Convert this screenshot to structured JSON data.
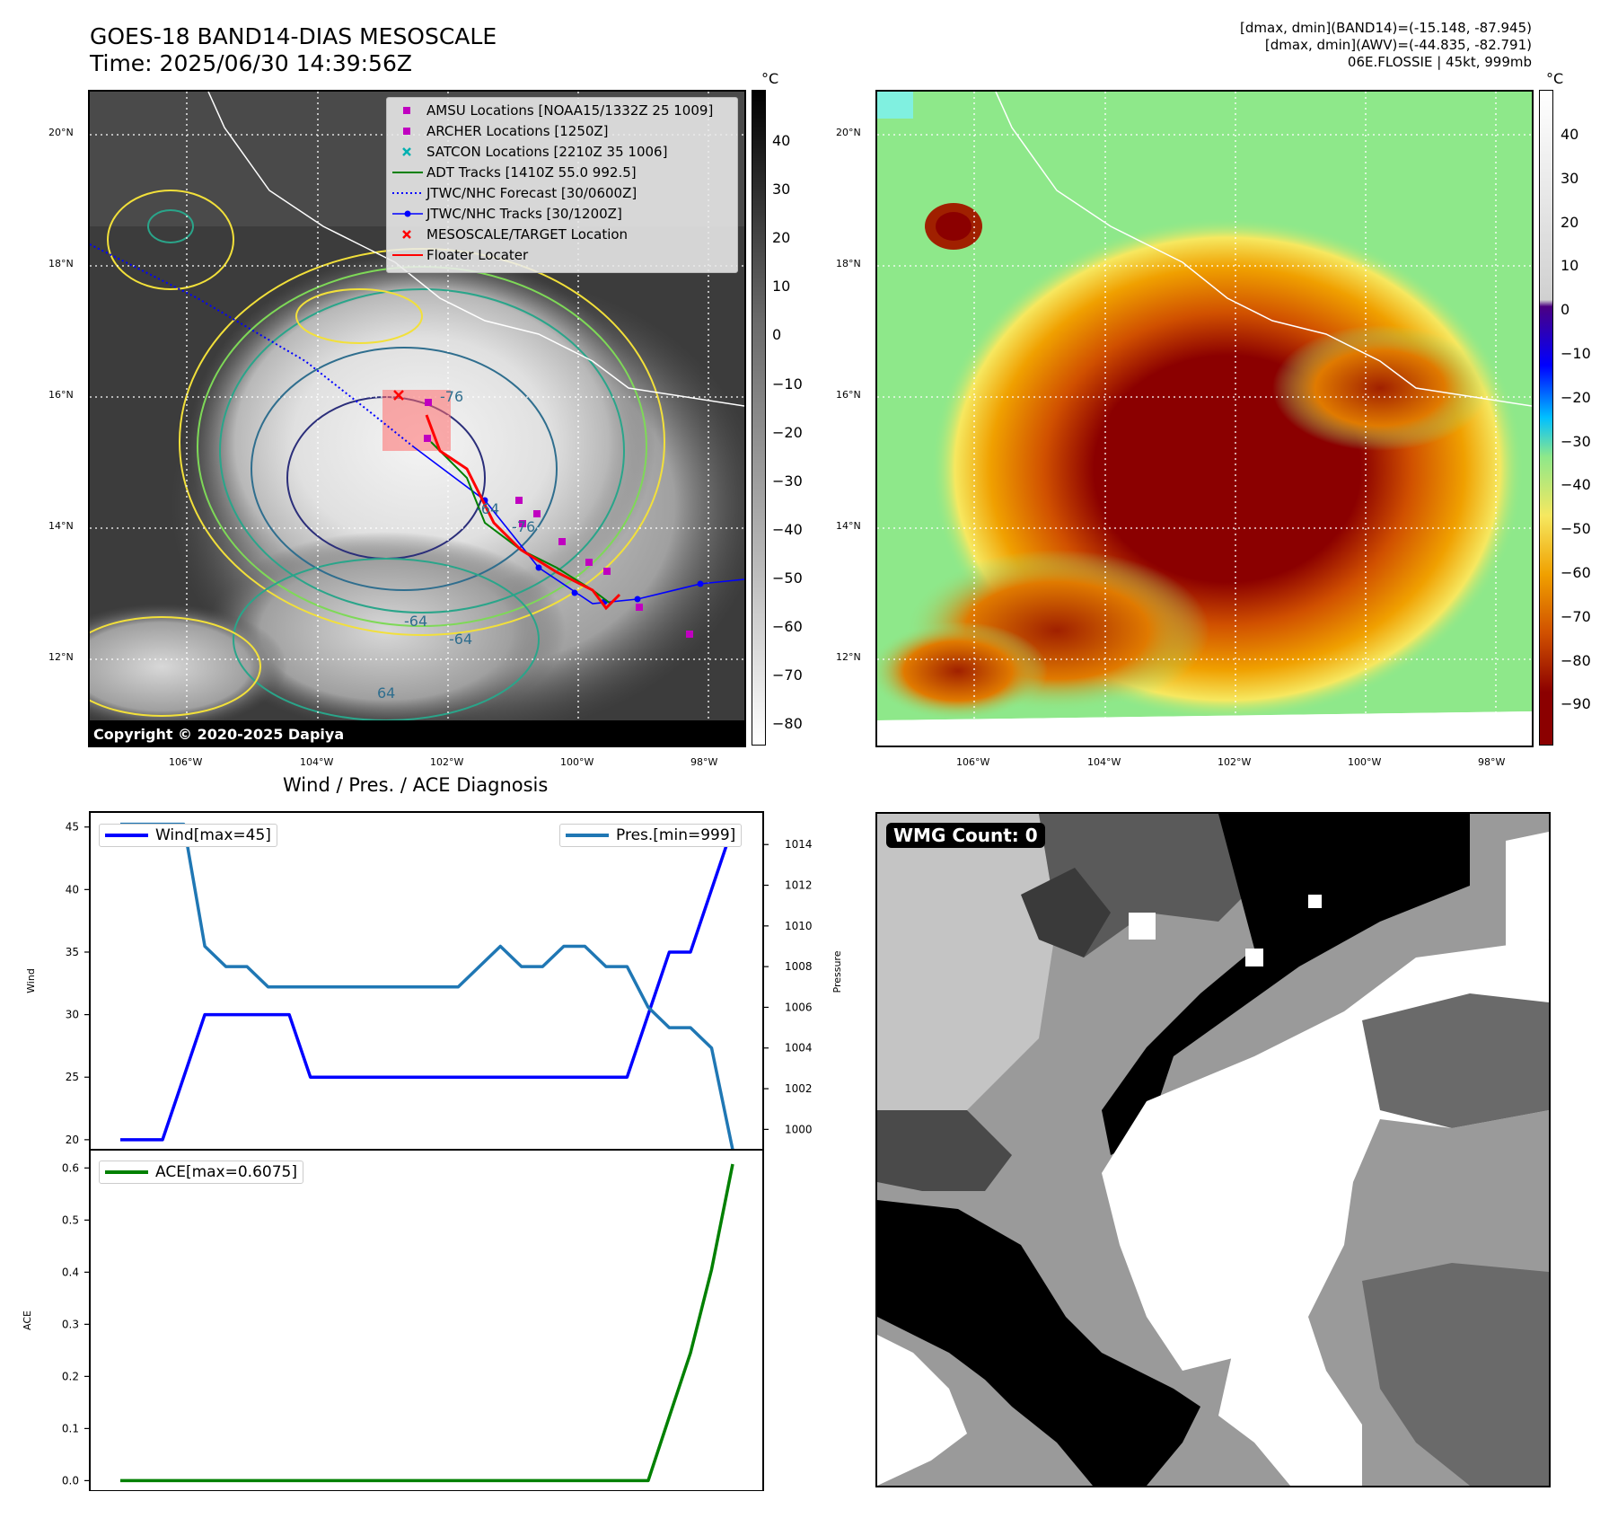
{
  "header": {
    "title_line1": "GOES-18 BAND14-DIAS MESOSCALE",
    "title_line2": "Time: 2025/06/30 14:39:56Z",
    "info_line1": "[dmax, dmin](BAND14)=(-15.148, -87.945)",
    "info_line2": "[dmax, dmin](AWV)=(-44.835, -82.791)",
    "info_line3": "06E.FLOSSIE | 45kt, 999mb"
  },
  "map_axes": {
    "lat_labels": [
      "20°N",
      "18°N",
      "16°N",
      "14°N",
      "12°N"
    ],
    "lon_labels": [
      "106°W",
      "104°W",
      "102°W",
      "100°W",
      "98°W"
    ]
  },
  "colorbar_left": {
    "unit": "°C",
    "ticks": [
      "40",
      "30",
      "20",
      "10",
      "0",
      "−10",
      "−20",
      "−30",
      "−40",
      "−50",
      "−60",
      "−70",
      "−80"
    ]
  },
  "colorbar_right": {
    "unit": "°C",
    "ticks": [
      "40",
      "30",
      "20",
      "10",
      "0",
      "−10",
      "−20",
      "−30",
      "−40",
      "−50",
      "−60",
      "−70",
      "−80",
      "−90"
    ]
  },
  "legend": {
    "items": [
      {
        "label": "AMSU Locations [NOAA15/1332Z 25 1009]",
        "color": "#c000c0",
        "symbol": "square"
      },
      {
        "label": "ARCHER Locations [1250Z]",
        "color": "#c000c0",
        "symbol": "square"
      },
      {
        "label": "SATCON Locations [2210Z 35 1006]",
        "color": "#00b0b0",
        "symbol": "x"
      },
      {
        "label": "ADT Tracks [1410Z 55.0 992.5]",
        "color": "#008000",
        "symbol": "line"
      },
      {
        "label": "JTWC/NHC Forecast [30/0600Z]",
        "color": "#0000ff",
        "symbol": "dotted"
      },
      {
        "label": "JTWC/NHC Tracks [30/1200Z]",
        "color": "#0000ff",
        "symbol": "line-dot"
      },
      {
        "label": "MESOSCALE/TARGET Location",
        "color": "#ff0000",
        "symbol": "x"
      },
      {
        "label": "Floater Locater",
        "color": "#ff0000",
        "symbol": "line"
      }
    ]
  },
  "copyright": "Copyright © 2020-2025 Dapiya",
  "contour_labels": [
    "-76",
    "-64",
    "-64",
    "-64",
    "-76",
    "64"
  ],
  "diag_title": "Wind / Pres. / ACE Diagnosis",
  "wmg_label": "WMG Count: 0",
  "chart_data": [
    {
      "type": "line",
      "title": "Wind / Pres. / ACE Diagnosis",
      "ylabel": "Wind",
      "y2label": "Pressure",
      "ylim": [
        19.2,
        46.2
      ],
      "y2lim": [
        999.0,
        1015.6
      ],
      "yticks": [
        20,
        25,
        30,
        35,
        40,
        45
      ],
      "y2ticks": [
        1000,
        1002,
        1004,
        1006,
        1008,
        1010,
        1012,
        1014
      ],
      "x": [
        0,
        1,
        2,
        3,
        4,
        5,
        6,
        7,
        8,
        9,
        10,
        11,
        12,
        13,
        14,
        15,
        16,
        17,
        18,
        19,
        20,
        21,
        22,
        23,
        24,
        25,
        26,
        27,
        28,
        29
      ],
      "series": [
        {
          "name": "Wind[max=45]",
          "axis": "left",
          "color": "#0000ff",
          "values": [
            20,
            20,
            20,
            25,
            30,
            30,
            30,
            30,
            30,
            25,
            25,
            25,
            25,
            25,
            25,
            25,
            25,
            25,
            25,
            25,
            25,
            25,
            25,
            25,
            25,
            30,
            35,
            35,
            40,
            45
          ]
        },
        {
          "name": "Pres.[min=999]",
          "axis": "right",
          "color": "#1f77b4",
          "values": [
            1015,
            1015,
            1015,
            1015,
            1009,
            1008,
            1008,
            1007,
            1007,
            1007,
            1007,
            1007,
            1007,
            1007,
            1007,
            1007,
            1007,
            1008,
            1009,
            1008,
            1008,
            1009,
            1009,
            1008,
            1008,
            1006,
            1005,
            1005,
            1004,
            999
          ]
        }
      ]
    },
    {
      "type": "line",
      "ylabel": "ACE",
      "ylim": [
        -0.02,
        0.635
      ],
      "yticks": [
        0.0,
        0.1,
        0.2,
        0.3,
        0.4,
        0.5,
        0.6
      ],
      "x": [
        0,
        1,
        2,
        3,
        4,
        5,
        6,
        7,
        8,
        9,
        10,
        11,
        12,
        13,
        14,
        15,
        16,
        17,
        18,
        19,
        20,
        21,
        22,
        23,
        24,
        25,
        26,
        27,
        28,
        29
      ],
      "series": [
        {
          "name": "ACE[max=0.6075]",
          "color": "#008000",
          "values": [
            0,
            0,
            0,
            0,
            0,
            0,
            0,
            0,
            0,
            0,
            0,
            0,
            0,
            0,
            0,
            0,
            0,
            0,
            0,
            0,
            0,
            0,
            0,
            0,
            0,
            0,
            0.1225,
            0.245,
            0.405,
            0.6075
          ]
        }
      ]
    }
  ]
}
